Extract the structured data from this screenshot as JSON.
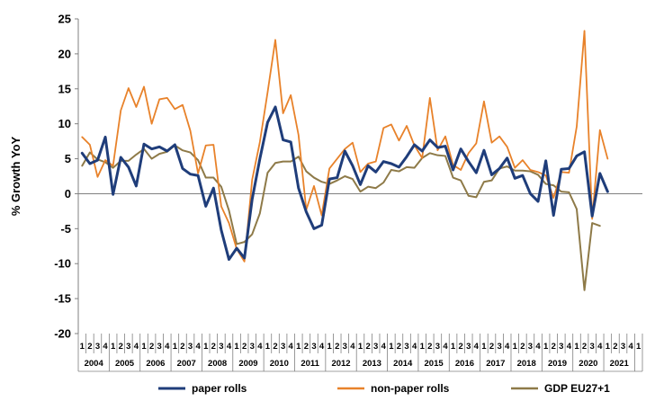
{
  "chart_data": {
    "type": "line",
    "ylabel": "% Growth YoY",
    "ylim": [
      -20,
      25
    ],
    "yticks": [
      "25",
      "20",
      "15",
      "10",
      "5",
      "0",
      "-5",
      "-10",
      "-15",
      "-20"
    ],
    "grid": false,
    "legend_position": "bottom",
    "quarter_labels": [
      "1",
      "2",
      "3",
      "4",
      "1",
      "2",
      "3",
      "4",
      "1",
      "2",
      "3",
      "4",
      "1",
      "2",
      "3",
      "4",
      "1",
      "2",
      "3",
      "4",
      "1",
      "2",
      "3",
      "4",
      "1",
      "2",
      "3",
      "4",
      "1",
      "2",
      "3",
      "4",
      "1",
      "2",
      "3",
      "4",
      "1",
      "2",
      "3",
      "4",
      "1",
      "2",
      "3",
      "4",
      "1",
      "2",
      "3",
      "4",
      "1",
      "2",
      "3",
      "4",
      "1",
      "2",
      "3",
      "4",
      "1",
      "2",
      "3",
      "4",
      "1",
      "2",
      "3",
      "4",
      "1",
      "2",
      "3",
      "4",
      "1",
      "2",
      "3",
      "4",
      "1"
    ],
    "year_labels": [
      "2004",
      "2005",
      "2006",
      "2007",
      "2008",
      "2009",
      "2010",
      "2011",
      "2012",
      "2013",
      "2014",
      "2015",
      "2016",
      "2017",
      "2018",
      "2019",
      "2020",
      "2021"
    ],
    "series": [
      {
        "name": "paper rolls",
        "color": "#1f3d7a",
        "values": [
          5.8,
          4.3,
          4.8,
          8.1,
          -0.1,
          5.2,
          3.8,
          1.1,
          7.1,
          6.4,
          6.7,
          6.1,
          7.0,
          3.6,
          2.8,
          2.6,
          -1.8,
          0.8,
          -5.2,
          -9.4,
          -7.8,
          -9.2,
          -0.8,
          5.0,
          10.2,
          12.4,
          7.7,
          7.4,
          0.8,
          -2.6,
          -5.0,
          -4.5,
          2.1,
          2.3,
          6.1,
          4.0,
          1.3,
          4.0,
          3.1,
          4.6,
          4.3,
          3.8,
          5.3,
          7.0,
          6.1,
          7.7,
          6.6,
          6.8,
          3.4,
          6.4,
          4.6,
          3.0,
          6.2,
          2.7,
          3.6,
          5.1,
          2.2,
          2.6,
          0.0,
          -1.1,
          4.7,
          -3.1,
          3.5,
          3.6,
          5.4,
          6.0,
          -3.2,
          2.9,
          0.3
        ]
      },
      {
        "name": "non-paper rolls",
        "color": "#e8822a",
        "values": [
          8.1,
          7.0,
          2.4,
          4.8,
          4.0,
          11.9,
          15.1,
          12.4,
          15.3,
          10.0,
          13.5,
          13.7,
          12.1,
          12.7,
          9.0,
          2.9,
          6.9,
          7.0,
          -1.8,
          -4.2,
          -7.9,
          -9.7,
          2.0,
          7.4,
          14.5,
          22.0,
          11.5,
          14.1,
          8.4,
          -2.3,
          1.1,
          -3.1,
          3.6,
          5.0,
          6.4,
          7.3,
          3.1,
          4.3,
          4.6,
          9.4,
          9.9,
          7.6,
          9.7,
          6.9,
          5.1,
          13.7,
          6.2,
          8.2,
          4.1,
          3.4,
          5.8,
          7.2,
          13.2,
          7.3,
          8.2,
          6.7,
          3.7,
          4.8,
          3.4,
          3.1,
          2.6,
          -0.6,
          3.1,
          3.0,
          9.6,
          23.3,
          -3.6,
          9.1,
          5.0
        ]
      },
      {
        "name": "GDP EU27+1",
        "color": "#8e7a48",
        "values": [
          4.0,
          5.9,
          4.9,
          4.5,
          3.7,
          4.7,
          4.7,
          5.6,
          6.4,
          5.0,
          5.7,
          6.0,
          6.9,
          6.2,
          5.9,
          4.8,
          2.3,
          2.3,
          1.0,
          -2.4,
          -7.2,
          -6.9,
          -5.8,
          -2.8,
          3.0,
          4.4,
          4.6,
          4.6,
          5.3,
          3.2,
          2.3,
          1.7,
          1.4,
          1.9,
          2.5,
          2.1,
          0.3,
          1.0,
          0.8,
          1.6,
          3.4,
          3.2,
          3.8,
          3.7,
          5.1,
          5.8,
          5.5,
          5.4,
          2.3,
          1.9,
          -0.3,
          -0.5,
          1.7,
          1.9,
          3.6,
          3.9,
          3.3,
          3.3,
          3.2,
          2.7,
          1.4,
          1.2,
          0.3,
          0.2,
          -2.2,
          -13.8,
          -4.2,
          -4.6
        ]
      }
    ]
  }
}
